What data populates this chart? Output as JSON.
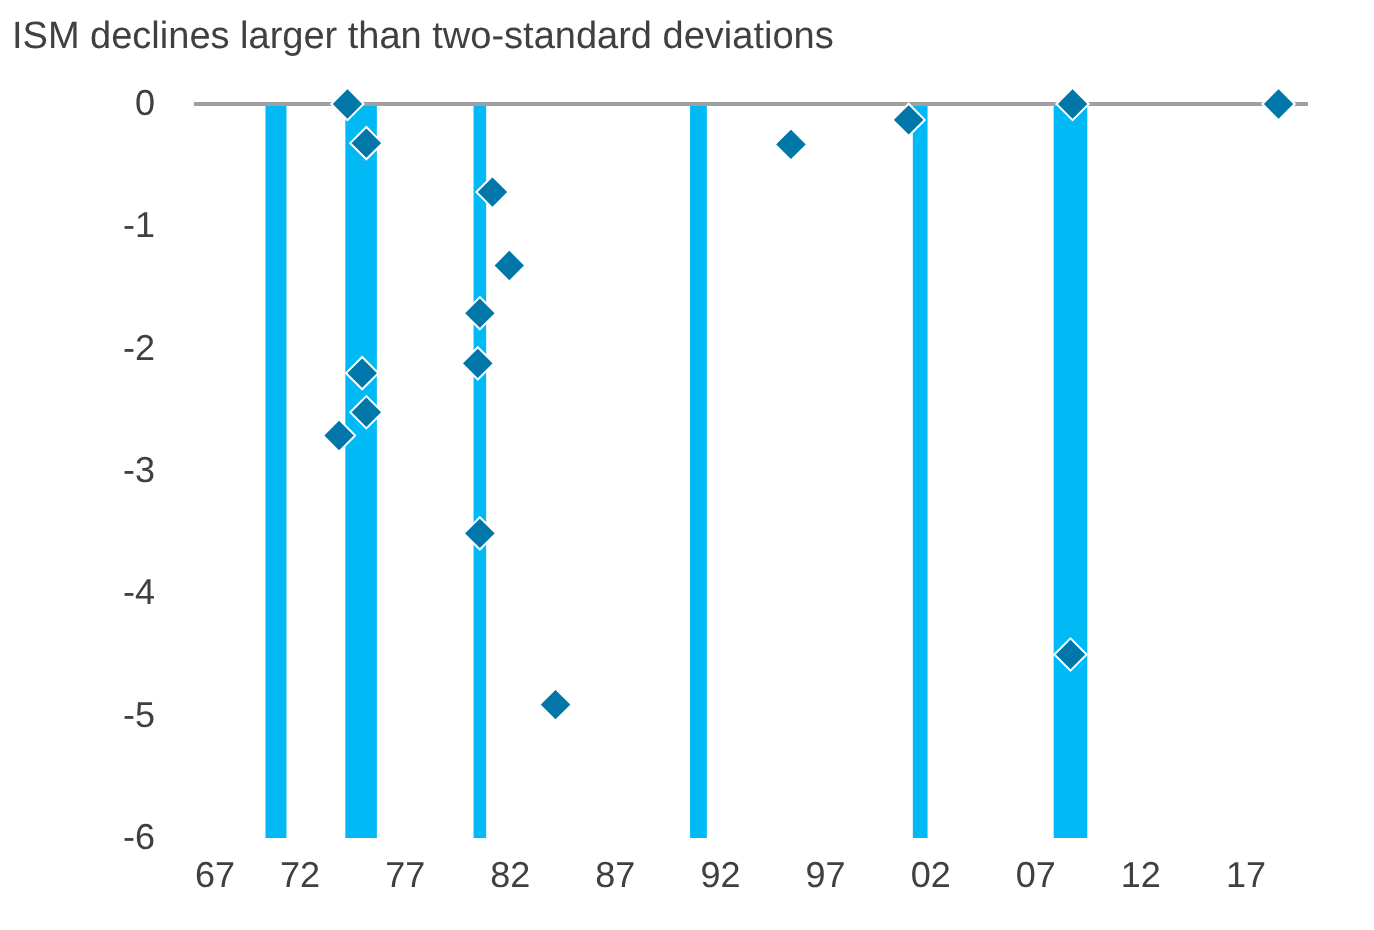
{
  "chart_data": {
    "type": "scatter",
    "title": "ISM declines larger than two-standard deviations",
    "x": [
      1974.3,
      1975.2,
      1981.2,
      1982.0,
      1980.6,
      1980.5,
      1975.0,
      1975.2,
      1973.9,
      1980.6,
      1984.2,
      1995.4,
      2001.0,
      2008.8,
      2008.7,
      2018.6
    ],
    "values": [
      0,
      -0.32,
      -0.72,
      -1.32,
      -1.71,
      -2.12,
      -2.2,
      -2.52,
      -2.71,
      -3.51,
      -4.91,
      -0.33,
      -0.13,
      0,
      -4.5,
      0
    ],
    "color": "#0077a8",
    "marker": "diamond",
    "xlim": [
      1967,
      2020
    ],
    "xticks": [
      {
        "value": 1967,
        "label": "67"
      },
      {
        "value": 1972,
        "label": "72"
      },
      {
        "value": 1977,
        "label": "77"
      },
      {
        "value": 1982,
        "label": "82"
      },
      {
        "value": 1987,
        "label": "87"
      },
      {
        "value": 1992,
        "label": "92"
      },
      {
        "value": 1997,
        "label": "97"
      },
      {
        "value": 2002,
        "label": "02"
      },
      {
        "value": 2007,
        "label": "07"
      },
      {
        "value": 2012,
        "label": "12"
      },
      {
        "value": 2017,
        "label": "17"
      }
    ],
    "ylim": [
      -6,
      0
    ],
    "yticks": [
      -6,
      -5,
      -4,
      -3,
      -2,
      -1,
      0
    ],
    "bands": [
      {
        "axis": "x",
        "from": 1970.4,
        "to": 1971.4,
        "color": "#00b9f5"
      },
      {
        "axis": "x",
        "from": 1974.2,
        "to": 1975.7,
        "color": "#00b9f5"
      },
      {
        "axis": "x",
        "from": 1980.3,
        "to": 1980.9,
        "color": "#00b9f5"
      },
      {
        "axis": "x",
        "from": 1990.6,
        "to": 1991.4,
        "color": "#00b9f5"
      },
      {
        "axis": "x",
        "from": 2001.2,
        "to": 2001.9,
        "color": "#00b9f5"
      },
      {
        "axis": "x",
        "from": 2007.9,
        "to": 2009.5,
        "color": "#00b9f5"
      }
    ],
    "ref_lines": [
      {
        "axis": "y",
        "value": 0,
        "color": "#a0a0a0"
      }
    ],
    "grid": false
  }
}
